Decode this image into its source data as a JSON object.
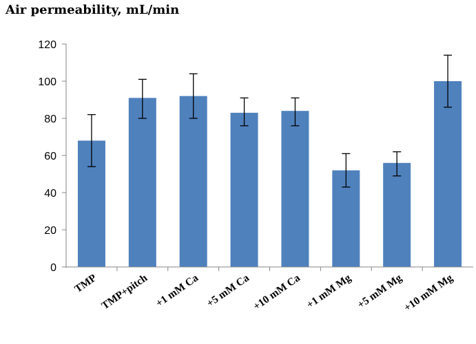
{
  "chart_data": {
    "type": "bar",
    "title": "Air permeability, mL/min",
    "xlabel": "",
    "ylabel": "",
    "categories": [
      "TMP",
      "TMP+pitch",
      "+1 mM Ca",
      "+5 mM Ca",
      "+10 mM Ca",
      "+1 mM Mg",
      "+5 mM Mg",
      "+10 mM Mg"
    ],
    "values": [
      68,
      91,
      92,
      83,
      84,
      52,
      56,
      100
    ],
    "error_low": [
      54,
      80,
      80,
      76,
      76,
      43,
      49,
      86
    ],
    "error_high": [
      82,
      101,
      104,
      91,
      91,
      61,
      62,
      114
    ],
    "ylim": [
      0,
      120
    ],
    "yticks": [
      0,
      20,
      40,
      60,
      80,
      100,
      120
    ],
    "bar_color": "#4F81BD",
    "grid": false,
    "legend": "none"
  }
}
